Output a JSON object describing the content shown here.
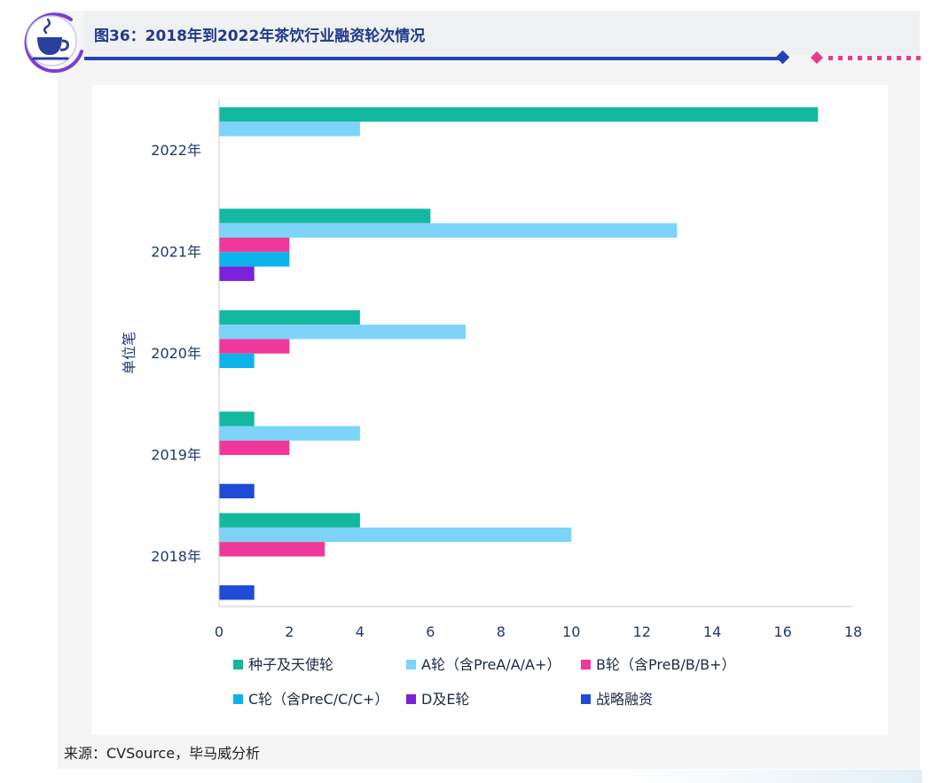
{
  "header": {
    "title": "图36：2018年到2022年茶饮行业融资轮次情况",
    "icon": "tea-cup-icon"
  },
  "footer": {
    "source": "来源：CVSource，毕马威分析"
  },
  "colors": {
    "title": "#1f3a8a",
    "rule": "#2243b8",
    "accent_pink": "#e93b8e",
    "axis_text": "#1f3a6e"
  },
  "chart_data": {
    "type": "bar",
    "orientation": "horizontal",
    "categories": [
      "2022年",
      "2021年",
      "2020年",
      "2019年",
      "2018年"
    ],
    "ylabel": "单位笔",
    "xlim": [
      0,
      18
    ],
    "xticks": [
      0,
      2,
      4,
      6,
      8,
      10,
      12,
      14,
      16,
      18
    ],
    "grid": false,
    "legend_position": "bottom",
    "series": [
      {
        "name": "种子及天使轮",
        "color": "#14b8a0",
        "values": [
          17,
          6,
          4,
          1,
          4
        ]
      },
      {
        "name": "A轮（含PreA/A/A+）",
        "color": "#7dd3f8",
        "values": [
          4,
          13,
          7,
          4,
          10
        ]
      },
      {
        "name": "B轮（含PreB/B/B+）",
        "color": "#f0389a",
        "values": [
          0,
          2,
          2,
          2,
          3
        ]
      },
      {
        "name": "C轮（含PreC/C/C+）",
        "color": "#0ab4ea",
        "values": [
          0,
          2,
          1,
          0,
          0
        ]
      },
      {
        "name": "D及E轮",
        "color": "#7a22d9",
        "values": [
          0,
          1,
          0,
          0,
          0
        ]
      },
      {
        "name": "战略融资",
        "color": "#1f4bd6",
        "values": [
          0,
          0,
          0,
          1,
          1
        ]
      }
    ]
  }
}
